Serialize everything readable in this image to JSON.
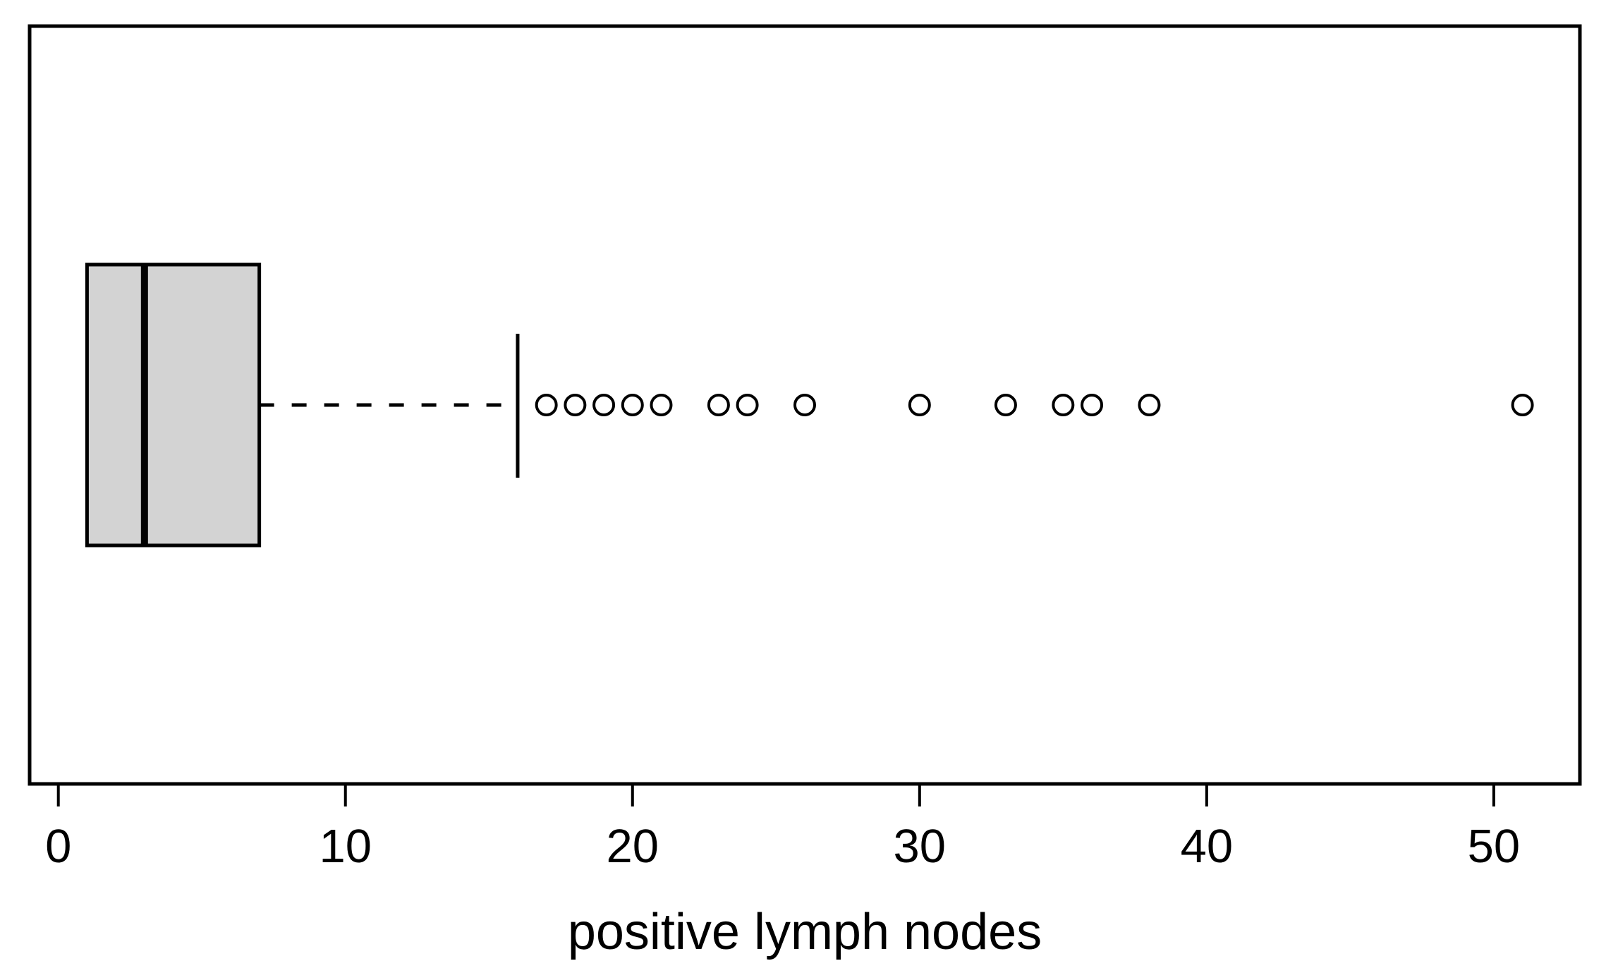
{
  "figure": {
    "background": "#ffffff",
    "frame_color": "#000000"
  },
  "chart_data": {
    "type": "boxplot",
    "orientation": "horizontal",
    "title": "",
    "xlabel": "positive lymph nodes",
    "ylabel": "",
    "xlim": [
      -1,
      53
    ],
    "x_ticks": [
      0,
      10,
      20,
      30,
      40,
      50
    ],
    "grid": false,
    "legend": false,
    "series": [
      {
        "name": "positive lymph nodes",
        "min": 1,
        "q1": 1,
        "median": 3,
        "q3": 7,
        "upper_whisker": 16,
        "outliers": [
          17,
          18,
          19,
          20,
          21,
          23,
          24,
          26,
          30,
          33,
          35,
          36,
          38,
          51
        ]
      }
    ],
    "colors": {
      "box_fill": "#d3d3d3",
      "stroke": "#000000",
      "background": "#ffffff"
    }
  }
}
